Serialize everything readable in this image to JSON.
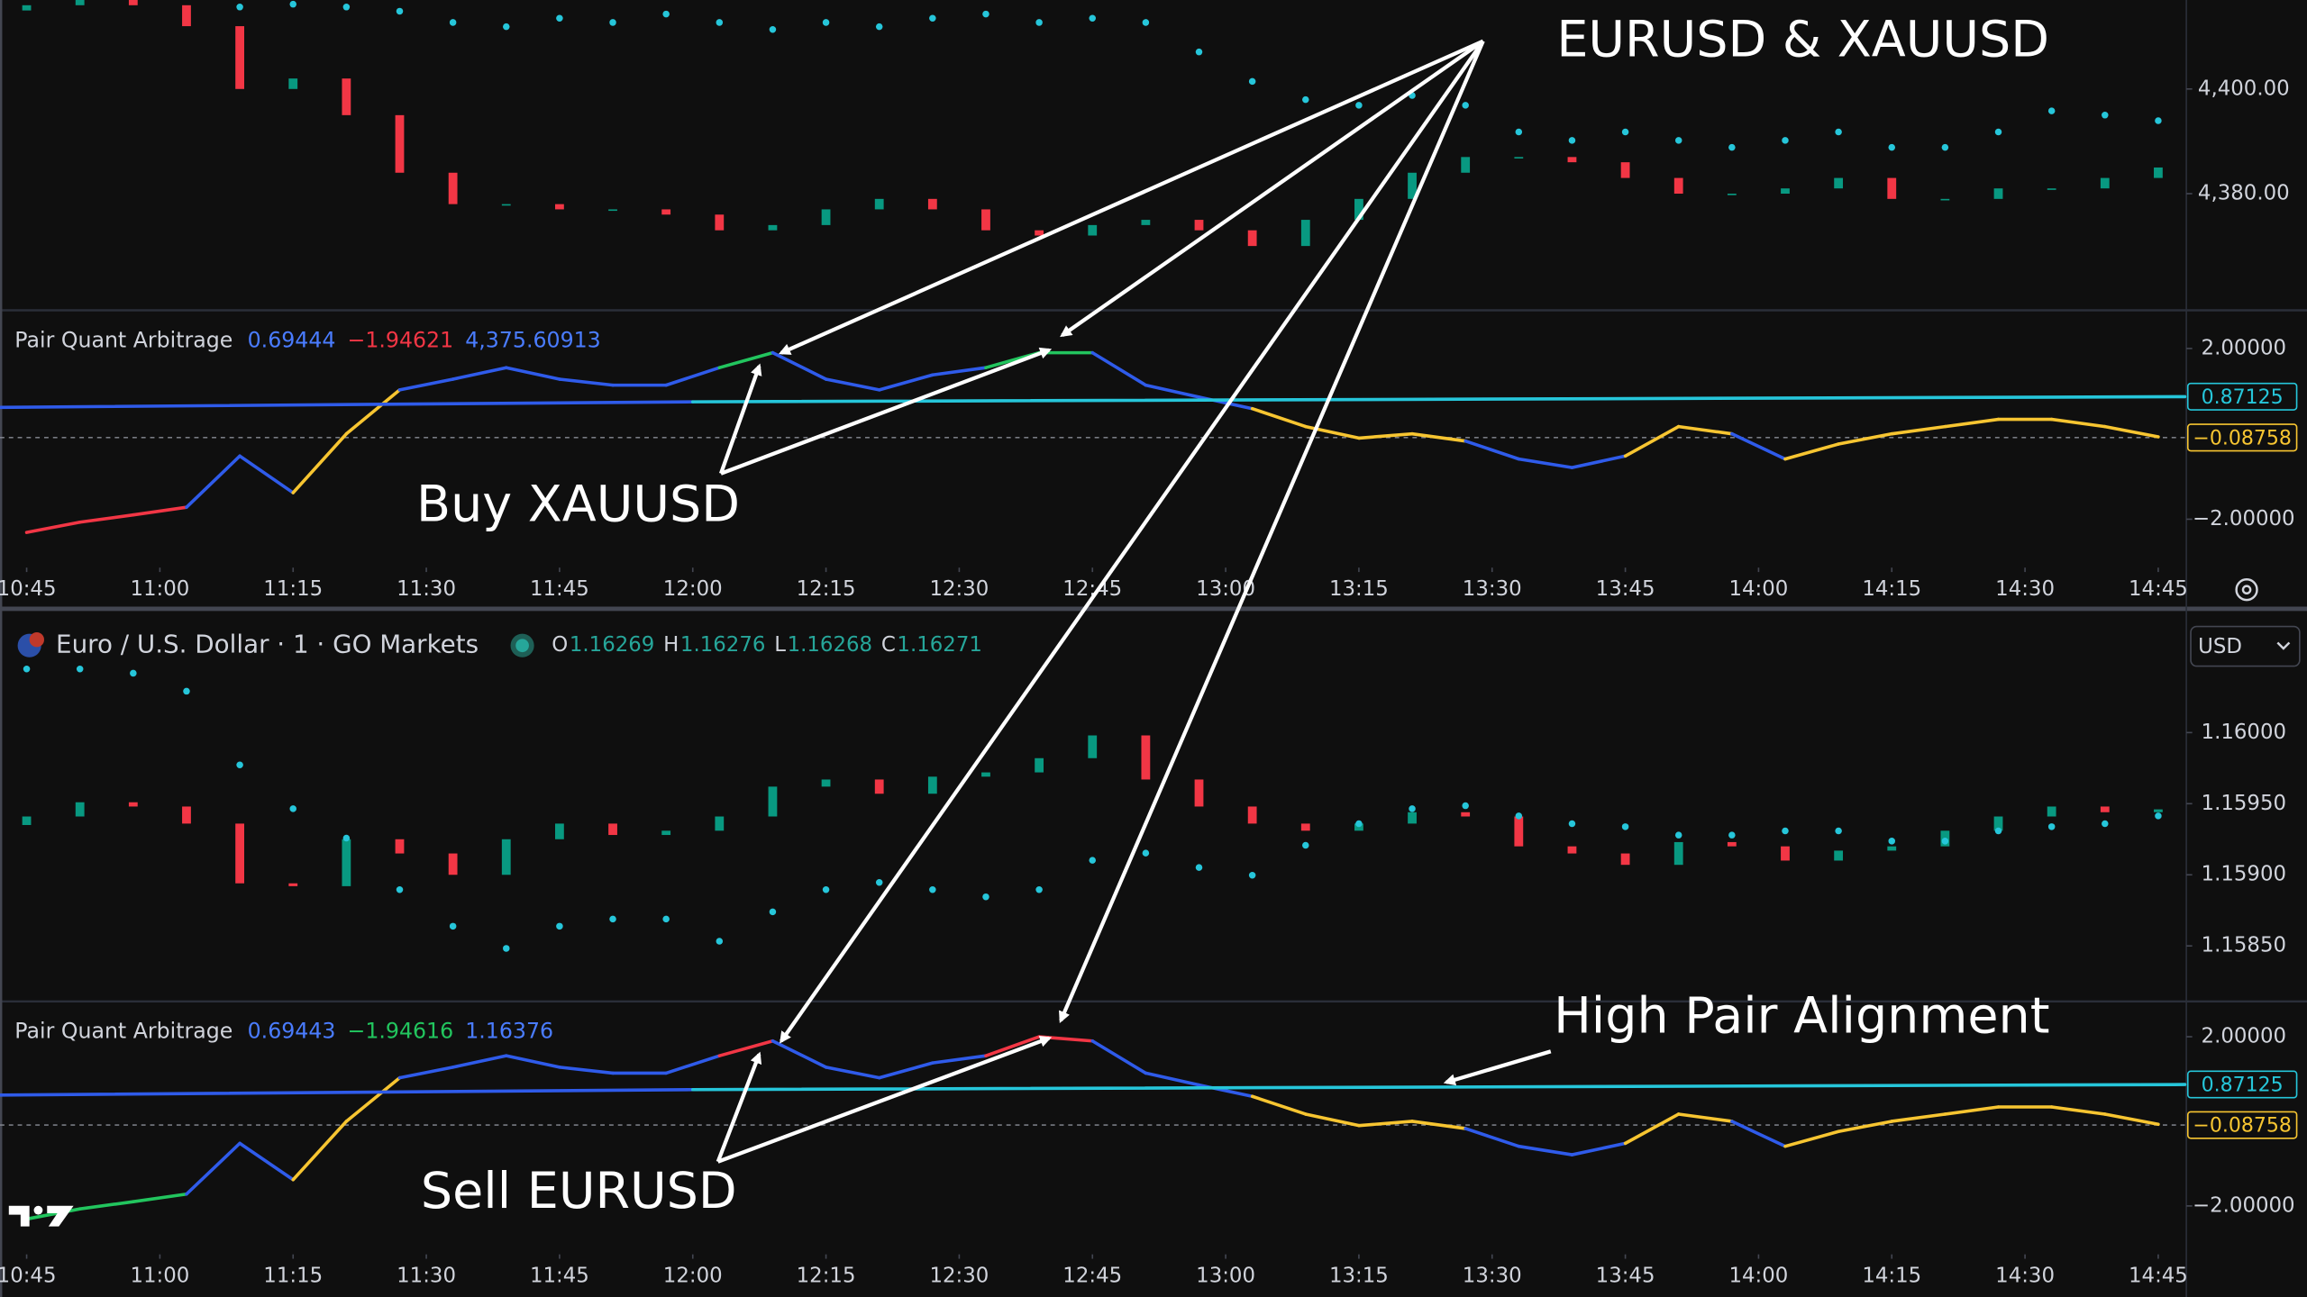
{
  "annotations": {
    "top": "EURUSD & XAUUSD",
    "buy": "Buy XAUUSD",
    "sell": "Sell EURUSD",
    "alignment": "High Pair Alignment"
  },
  "header": {
    "symbol": "Euro / U.S. Dollar · 1 · GO Markets",
    "ohlc": [
      {
        "key": "O",
        "value": "1.16269"
      },
      {
        "key": "H",
        "value": "1.16276"
      },
      {
        "key": "L",
        "value": "1.16268"
      },
      {
        "key": "C",
        "value": "1.16271"
      }
    ],
    "currency": "USD"
  },
  "chart_data": [
    {
      "type": "candlestick",
      "color_up": "#089981",
      "color_down": "#f23645",
      "x": [
        645,
        651,
        657,
        663,
        669,
        675,
        681,
        687,
        693,
        699,
        705,
        711,
        717,
        723,
        729,
        735,
        741,
        747,
        753,
        759,
        765,
        771,
        777,
        783,
        789,
        795,
        801,
        807,
        813,
        819,
        825,
        831,
        837,
        843,
        849,
        855,
        861,
        867,
        873,
        879,
        885
      ],
      "open": [
        4415,
        4416,
        4417,
        4416,
        4412,
        4400,
        4402,
        4395,
        4384,
        4378,
        4378,
        4377,
        4377,
        4376,
        4373,
        4374,
        4377,
        4379,
        4377,
        4373,
        4372,
        4374,
        4375,
        4373,
        4370,
        4375,
        4379,
        4384,
        4387,
        4387,
        4386,
        4383,
        4380,
        4380,
        4381,
        4383,
        4379,
        4379,
        4381,
        4381,
        4383
      ],
      "close": [
        4416,
        4417,
        4416,
        4412,
        4400,
        4402,
        4395,
        4384,
        4378,
        4378,
        4377,
        4377,
        4376,
        4373,
        4374,
        4377,
        4379,
        4377,
        4373,
        4372,
        4374,
        4375,
        4373,
        4370,
        4375,
        4379,
        4384,
        4387,
        4387,
        4386,
        4383,
        4380,
        4380,
        4381,
        4383,
        4379,
        4379,
        4381,
        4381,
        4383,
        4385
      ],
      "series": [
        {
          "color": "#26c6da",
          "axis": "y2",
          "values": [
            null,
            null,
            null,
            null,
            1.16095,
            1.16097,
            1.16095,
            1.16092,
            1.16084,
            1.16081,
            1.16087,
            1.16084,
            1.1609,
            1.16084,
            1.16079,
            1.16084,
            1.16081,
            1.16087,
            1.1609,
            1.16084,
            1.16087,
            1.16084,
            1.16063,
            1.16042,
            1.16029,
            1.16025,
            1.16032,
            1.16025,
            1.16006,
            1.16,
            1.16006,
            1.16,
            1.15995,
            1.16,
            1.16006,
            1.15995,
            1.15995,
            1.16006,
            1.16021,
            1.16018,
            1.16014
          ]
        }
      ],
      "xlim": [
        642,
        888
      ],
      "ylim": [
        4358,
        4417
      ],
      "y2lim": [
        1.1588,
        1.161
      ],
      "yticks": [
        {
          "value": 4400,
          "label": "4,400.00"
        },
        {
          "value": 4380,
          "label": "4,380.00"
        }
      ]
    },
    {
      "type": "oscillator",
      "title": "Pair Quant Arbitrage",
      "legend": [
        {
          "text": "0.69444",
          "color": "#4a7cff"
        },
        {
          "text": "−1.94621",
          "color": "#f23645"
        },
        {
          "text": "4,375.60913",
          "color": "#4a7cff"
        }
      ],
      "x": [
        645,
        651,
        657,
        663,
        669,
        675,
        681,
        687,
        693,
        699,
        705,
        711,
        717,
        723,
        729,
        735,
        741,
        747,
        753,
        759,
        765,
        771,
        777,
        783,
        789,
        795,
        801,
        807,
        813,
        819,
        825,
        831,
        837,
        843,
        849,
        855,
        861,
        867,
        873,
        879,
        885
      ],
      "series": [
        {
          "values": [
            -2.31,
            -2.07,
            -1.9,
            -1.72,
            -0.52,
            -1.38,
            0,
            1.03,
            1.28,
            1.55,
            1.28,
            1.14,
            1.14,
            1.55,
            1.9,
            1.28,
            1.03,
            1.38,
            1.55,
            1.9,
            1.9,
            1.14,
            0.86,
            0.59,
            0.17,
            -0.1,
            0,
            -0.17,
            -0.59,
            -0.79,
            -0.52,
            0.17,
            0,
            -0.59,
            -0.24,
            0,
            0.17,
            0.34,
            0.34,
            0.17,
            -0.07
          ],
          "colors": [
            "#f23645",
            "#f23645",
            "#f23645",
            "#2f5bea",
            "#2f5bea",
            "#f7c531",
            "#f7c531",
            "#2f5bea",
            "#2f5bea",
            "#2f5bea",
            "#2f5bea",
            "#2f5bea",
            "#2f5bea",
            "#22c55e",
            "#2f5bea",
            "#2f5bea",
            "#2f5bea",
            "#2f5bea",
            "#22c55e",
            "#22c55e",
            "#2f5bea",
            "#2f5bea",
            "#2f5bea",
            "#f7c531",
            "#f7c531",
            "#f7c531",
            "#f7c531",
            "#2f5bea",
            "#2f5bea",
            "#2f5bea",
            "#f7c531",
            "#f7c531",
            "#2f5bea",
            "#f7c531",
            "#f7c531",
            "#f7c531",
            "#f7c531",
            "#f7c531",
            "#f7c531",
            "#f7c531",
            "#f7c531"
          ]
        },
        {
          "x": [
            642,
            720,
            888
          ],
          "values": [
            0.62,
            0.75,
            0.87
          ],
          "colors": [
            "#2f5bea",
            "#26c6da",
            "#26c6da"
          ]
        }
      ],
      "level": {
        "value": 0.87125,
        "label": "0.87125",
        "color": "#26c6da"
      },
      "last": {
        "value": -0.08758,
        "label": "−0.08758",
        "color": "#f7c531"
      },
      "xlim": [
        642,
        888
      ],
      "ylim": [
        -3.1,
        2.86
      ],
      "yticks": [
        {
          "value": 2,
          "label": "2.00000"
        },
        {
          "value": -2,
          "label": "−2.00000"
        }
      ],
      "xticks": [
        {
          "value": 645,
          "label": "10:45"
        },
        {
          "value": 660,
          "label": "11:00"
        },
        {
          "value": 675,
          "label": "11:15"
        },
        {
          "value": 690,
          "label": "11:30"
        },
        {
          "value": 705,
          "label": "11:45"
        },
        {
          "value": 720,
          "label": "12:00"
        },
        {
          "value": 735,
          "label": "12:15"
        },
        {
          "value": 750,
          "label": "12:30"
        },
        {
          "value": 765,
          "label": "12:45"
        },
        {
          "value": 780,
          "label": "13:00"
        },
        {
          "value": 795,
          "label": "13:15"
        },
        {
          "value": 810,
          "label": "13:30"
        },
        {
          "value": 825,
          "label": "13:45"
        },
        {
          "value": 840,
          "label": "14:00"
        },
        {
          "value": 855,
          "label": "14:15"
        },
        {
          "value": 870,
          "label": "14:30"
        },
        {
          "value": 885,
          "label": "14:45"
        }
      ]
    },
    {
      "type": "candlestick",
      "color_up": "#089981",
      "color_down": "#f23645",
      "x": [
        645,
        651,
        657,
        663,
        669,
        675,
        681,
        687,
        693,
        699,
        705,
        711,
        717,
        723,
        729,
        735,
        741,
        747,
        753,
        759,
        765,
        771,
        777,
        783,
        789,
        795,
        801,
        807,
        813,
        819,
        825,
        831,
        837,
        843,
        849,
        855,
        861,
        867,
        873,
        879,
        885
      ],
      "open": [
        1.15935,
        1.15941,
        1.15951,
        1.15948,
        1.15936,
        1.15894,
        1.15892,
        1.15925,
        1.15915,
        1.159,
        1.15925,
        1.15936,
        1.15928,
        1.15931,
        1.15941,
        1.15962,
        1.15967,
        1.15957,
        1.15969,
        1.15972,
        1.15982,
        1.15998,
        1.15967,
        1.15948,
        1.15936,
        1.15931,
        1.15936,
        1.15944,
        1.15941,
        1.1592,
        1.15915,
        1.15907,
        1.15923,
        1.1592,
        1.1591,
        1.15917,
        1.1592,
        1.15931,
        1.15941,
        1.15948,
        1.15944
      ],
      "close": [
        1.15941,
        1.15951,
        1.15948,
        1.15936,
        1.15894,
        1.15892,
        1.15925,
        1.15915,
        1.159,
        1.15925,
        1.15936,
        1.15928,
        1.15931,
        1.15941,
        1.15962,
        1.15967,
        1.15957,
        1.15969,
        1.15972,
        1.15982,
        1.15998,
        1.15967,
        1.15948,
        1.15936,
        1.15931,
        1.15936,
        1.15944,
        1.15941,
        1.1592,
        1.15915,
        1.15907,
        1.15923,
        1.1592,
        1.1591,
        1.15917,
        1.1592,
        1.15931,
        1.15941,
        1.15948,
        1.15944,
        1.15946
      ],
      "series": [
        {
          "color": "#26c6da",
          "axis": "y2",
          "values": [
            4410.2,
            4410.2,
            4409.5,
            4406.5,
            4394.2,
            4386.9,
            4382,
            4373.4,
            4367.3,
            4363.6,
            4367.3,
            4368.5,
            4368.5,
            4364.8,
            4369.7,
            4373.4,
            4374.6,
            4373.4,
            4372.2,
            4373.4,
            4378.3,
            4379.5,
            4377.1,
            4375.8,
            4380.8,
            4384.4,
            4386.9,
            4387.4,
            4385.7,
            4384.4,
            4383.9,
            4382.5,
            4382.5,
            4383.2,
            4383.2,
            4381.5,
            4381.5,
            4383.2,
            4383.9,
            4384.4,
            4385.7
          ]
        }
      ],
      "xlim": [
        642,
        888
      ],
      "ylim": [
        1.15812,
        1.16086
      ],
      "y2lim": [
        4355,
        4420
      ],
      "yticks": [
        {
          "value": 1.16,
          "label": "1.16000"
        },
        {
          "value": 1.1595,
          "label": "1.15950"
        },
        {
          "value": 1.159,
          "label": "1.15900"
        },
        {
          "value": 1.1585,
          "label": "1.15850"
        }
      ]
    },
    {
      "type": "oscillator",
      "title": "Pair Quant Arbitrage",
      "legend": [
        {
          "text": "0.69443",
          "color": "#4a7cff"
        },
        {
          "text": "−1.94616",
          "color": "#22c55e"
        },
        {
          "text": "1.16376",
          "color": "#4a7cff"
        }
      ],
      "x": [
        645,
        651,
        657,
        663,
        669,
        675,
        681,
        687,
        693,
        699,
        705,
        711,
        717,
        723,
        729,
        735,
        741,
        747,
        753,
        759,
        765,
        771,
        777,
        783,
        789,
        795,
        801,
        807,
        813,
        819,
        825,
        831,
        837,
        843,
        849,
        855,
        861,
        867,
        873,
        879,
        885
      ],
      "series": [
        {
          "values": [
            -2.31,
            -2.07,
            -1.9,
            -1.72,
            -0.52,
            -1.38,
            0,
            1.03,
            1.28,
            1.55,
            1.28,
            1.14,
            1.14,
            1.55,
            1.9,
            1.28,
            1.03,
            1.38,
            1.55,
            2,
            1.9,
            1.14,
            0.86,
            0.59,
            0.17,
            -0.1,
            0,
            -0.17,
            -0.59,
            -0.79,
            -0.52,
            0.17,
            0,
            -0.59,
            -0.24,
            0,
            0.17,
            0.34,
            0.34,
            0.17,
            -0.07
          ],
          "colors": [
            "#22c55e",
            "#22c55e",
            "#22c55e",
            "#2f5bea",
            "#2f5bea",
            "#f7c531",
            "#f7c531",
            "#2f5bea",
            "#2f5bea",
            "#2f5bea",
            "#2f5bea",
            "#2f5bea",
            "#2f5bea",
            "#f23645",
            "#2f5bea",
            "#2f5bea",
            "#2f5bea",
            "#2f5bea",
            "#f23645",
            "#f23645",
            "#2f5bea",
            "#2f5bea",
            "#2f5bea",
            "#f7c531",
            "#f7c531",
            "#f7c531",
            "#f7c531",
            "#2f5bea",
            "#2f5bea",
            "#2f5bea",
            "#f7c531",
            "#f7c531",
            "#2f5bea",
            "#f7c531",
            "#f7c531",
            "#f7c531",
            "#f7c531",
            "#f7c531",
            "#f7c531",
            "#f7c531",
            "#f7c531"
          ]
        },
        {
          "x": [
            642,
            720,
            888
          ],
          "values": [
            0.62,
            0.75,
            0.87
          ],
          "colors": [
            "#2f5bea",
            "#26c6da",
            "#26c6da"
          ]
        }
      ],
      "level": {
        "value": 0.87125,
        "label": "0.87125",
        "color": "#26c6da"
      },
      "last": {
        "value": -0.08758,
        "label": "−0.08758",
        "color": "#f7c531"
      },
      "xlim": [
        642,
        888
      ],
      "ylim": [
        -3.11,
        2.8
      ],
      "yticks": [
        {
          "value": 2,
          "label": "2.00000"
        },
        {
          "value": -2,
          "label": "−2.00000"
        }
      ],
      "xticks": [
        {
          "value": 645,
          "label": "10:45"
        },
        {
          "value": 660,
          "label": "11:00"
        },
        {
          "value": 675,
          "label": "11:15"
        },
        {
          "value": 690,
          "label": "11:30"
        },
        {
          "value": 705,
          "label": "11:45"
        },
        {
          "value": 720,
          "label": "12:00"
        },
        {
          "value": 735,
          "label": "12:15"
        },
        {
          "value": 750,
          "label": "12:30"
        },
        {
          "value": 765,
          "label": "12:45"
        },
        {
          "value": 780,
          "label": "13:00"
        },
        {
          "value": 795,
          "label": "13:15"
        },
        {
          "value": 810,
          "label": "13:30"
        },
        {
          "value": 825,
          "label": "13:45"
        },
        {
          "value": 840,
          "label": "14:00"
        },
        {
          "value": 855,
          "label": "14:15"
        },
        {
          "value": 870,
          "label": "14:30"
        },
        {
          "value": 885,
          "label": "14:45"
        }
      ]
    }
  ]
}
